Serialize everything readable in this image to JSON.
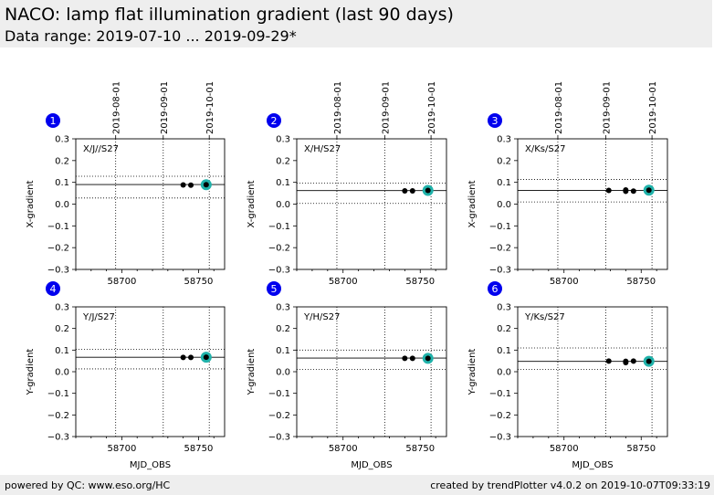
{
  "header": {
    "title": "NACO: lamp flat illumination gradient (last 90 days)",
    "subtitle": "Data range: 2019-07-10 ... 2019-09-29*"
  },
  "footer": {
    "left": "powered by QC: www.eso.org/HC",
    "right": "created by trendPlotter v4.0.2 on 2019-10-07T09:33:19"
  },
  "colors": {
    "point": "#000000",
    "highlight": "#20b2aa",
    "badge": "#0000ee"
  },
  "chart_data": [
    {
      "type": "scatter",
      "index": "1",
      "label": "X/J//S27",
      "ylabel": "X-gradient",
      "xlabel": "",
      "xlim": [
        58670,
        58767
      ],
      "ylim": [
        -0.3,
        0.3
      ],
      "xticks": [
        58700,
        58750
      ],
      "yticks": [
        -0.3,
        -0.2,
        -0.1,
        0.0,
        0.1,
        0.2,
        0.3
      ],
      "ytick_labels": [
        "−0.3",
        "−0.2",
        "−0.1",
        "0.0",
        "0.1",
        "0.2",
        "0.3"
      ],
      "date_ticks": [
        {
          "mjd": 58696,
          "label": "2019-08-01"
        },
        {
          "mjd": 58727,
          "label": "2019-09-01"
        },
        {
          "mjd": 58757,
          "label": "2019-10-01"
        }
      ],
      "mean": 0.09,
      "band": [
        0.028,
        0.128
      ],
      "points": [
        {
          "x": 58740,
          "y": 0.088
        },
        {
          "x": 58745,
          "y": 0.087
        },
        {
          "x": 58755,
          "y": 0.089
        }
      ],
      "highlight": {
        "x": 58755,
        "y": 0.089
      }
    },
    {
      "type": "scatter",
      "index": "2",
      "label": "X/H/S27",
      "ylabel": "X-gradient",
      "xlabel": "",
      "xlim": [
        58670,
        58767
      ],
      "ylim": [
        -0.3,
        0.3
      ],
      "xticks": [
        58700,
        58750
      ],
      "yticks": [
        -0.3,
        -0.2,
        -0.1,
        0.0,
        0.1,
        0.2,
        0.3
      ],
      "ytick_labels": [
        "−0.3",
        "−0.2",
        "−0.1",
        "0.0",
        "0.1",
        "0.2",
        "0.3"
      ],
      "date_ticks": [
        {
          "mjd": 58696,
          "label": "2019-08-01"
        },
        {
          "mjd": 58727,
          "label": "2019-09-01"
        },
        {
          "mjd": 58757,
          "label": "2019-10-01"
        }
      ],
      "mean": 0.062,
      "band": [
        0.003,
        0.097
      ],
      "points": [
        {
          "x": 58740,
          "y": 0.061
        },
        {
          "x": 58745,
          "y": 0.061
        },
        {
          "x": 58755,
          "y": 0.063
        }
      ],
      "highlight": {
        "x": 58755,
        "y": 0.063
      }
    },
    {
      "type": "scatter",
      "index": "3",
      "label": "X/Ks/S27",
      "ylabel": "X-gradient",
      "xlabel": "",
      "xlim": [
        58670,
        58767
      ],
      "ylim": [
        -0.3,
        0.3
      ],
      "xticks": [
        58700,
        58750
      ],
      "yticks": [
        -0.3,
        -0.2,
        -0.1,
        0.0,
        0.1,
        0.2,
        0.3
      ],
      "ytick_labels": [
        "−0.3",
        "−0.2",
        "−0.1",
        "0.0",
        "0.1",
        "0.2",
        "0.3"
      ],
      "date_ticks": [
        {
          "mjd": 58696,
          "label": "2019-08-01"
        },
        {
          "mjd": 58727,
          "label": "2019-09-01"
        },
        {
          "mjd": 58757,
          "label": "2019-10-01"
        }
      ],
      "mean": 0.063,
      "band": [
        0.01,
        0.113
      ],
      "points": [
        {
          "x": 58729,
          "y": 0.063
        },
        {
          "x": 58740,
          "y": 0.065
        },
        {
          "x": 58740,
          "y": 0.059
        },
        {
          "x": 58745,
          "y": 0.06
        },
        {
          "x": 58755,
          "y": 0.064
        }
      ],
      "highlight": {
        "x": 58755,
        "y": 0.064
      }
    },
    {
      "type": "scatter",
      "index": "4",
      "label": "Y/J/S27",
      "ylabel": "Y-gradient",
      "xlabel": "MJD_OBS",
      "xlim": [
        58670,
        58767
      ],
      "ylim": [
        -0.3,
        0.3
      ],
      "xticks": [
        58700,
        58750
      ],
      "yticks": [
        -0.3,
        -0.2,
        -0.1,
        0.0,
        0.1,
        0.2,
        0.3
      ],
      "ytick_labels": [
        "−0.3",
        "−0.2",
        "−0.1",
        "0.0",
        "0.1",
        "0.2",
        "0.3"
      ],
      "date_ticks": [],
      "mean": 0.067,
      "band": [
        0.013,
        0.103
      ],
      "points": [
        {
          "x": 58740,
          "y": 0.066
        },
        {
          "x": 58745,
          "y": 0.066
        },
        {
          "x": 58755,
          "y": 0.067
        }
      ],
      "highlight": {
        "x": 58755,
        "y": 0.067
      }
    },
    {
      "type": "scatter",
      "index": "5",
      "label": "Y/H/S27",
      "ylabel": "Y-gradient",
      "xlabel": "MJD_OBS",
      "xlim": [
        58670,
        58767
      ],
      "ylim": [
        -0.3,
        0.3
      ],
      "xticks": [
        58700,
        58750
      ],
      "yticks": [
        -0.3,
        -0.2,
        -0.1,
        0.0,
        0.1,
        0.2,
        0.3
      ],
      "ytick_labels": [
        "−0.3",
        "−0.2",
        "−0.1",
        "0.0",
        "0.1",
        "0.2",
        "0.3"
      ],
      "date_ticks": [],
      "mean": 0.063,
      "band": [
        0.01,
        0.1
      ],
      "points": [
        {
          "x": 58740,
          "y": 0.062
        },
        {
          "x": 58745,
          "y": 0.062
        },
        {
          "x": 58755,
          "y": 0.062
        }
      ],
      "highlight": {
        "x": 58755,
        "y": 0.062
      }
    },
    {
      "type": "scatter",
      "index": "6",
      "label": "Y/Ks/S27",
      "ylabel": "Y-gradient",
      "xlabel": "MJD_OBS",
      "xlim": [
        58670,
        58767
      ],
      "ylim": [
        -0.3,
        0.3
      ],
      "xticks": [
        58700,
        58750
      ],
      "yticks": [
        -0.3,
        -0.2,
        -0.1,
        0.0,
        0.1,
        0.2,
        0.3
      ],
      "ytick_labels": [
        "−0.3",
        "−0.2",
        "−0.1",
        "0.0",
        "0.1",
        "0.2",
        "0.3"
      ],
      "date_ticks": [],
      "mean": 0.048,
      "band": [
        0.01,
        0.11
      ],
      "points": [
        {
          "x": 58729,
          "y": 0.049
        },
        {
          "x": 58740,
          "y": 0.048
        },
        {
          "x": 58740,
          "y": 0.042
        },
        {
          "x": 58745,
          "y": 0.049
        },
        {
          "x": 58755,
          "y": 0.048
        }
      ],
      "highlight": {
        "x": 58755,
        "y": 0.048
      }
    }
  ]
}
